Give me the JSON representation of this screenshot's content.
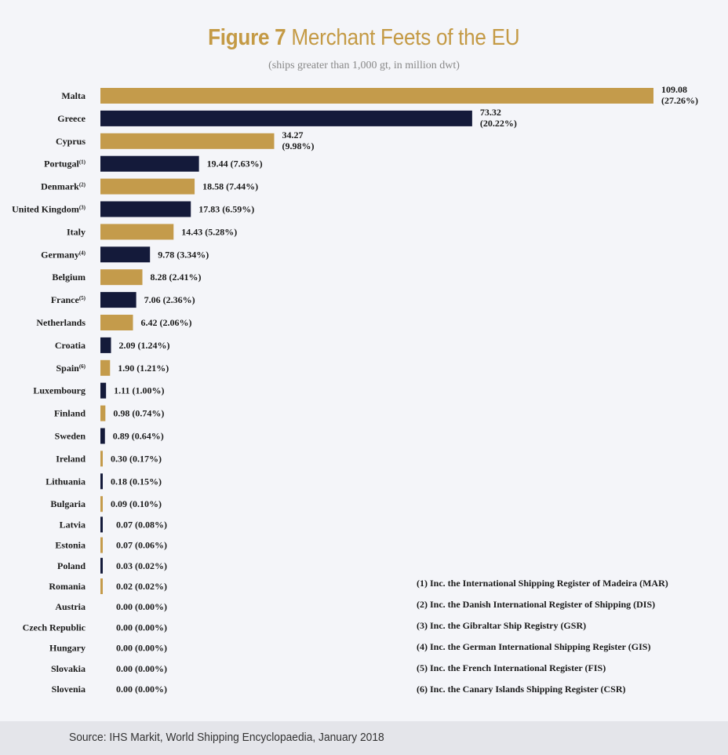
{
  "title": {
    "figure": "Figure 7",
    "text": "Merchant Feets of the EU"
  },
  "subtitle": "(ships greater than 1,000 gt, in million dwt)",
  "colors": {
    "gold": "#c49b4b",
    "navy": "#141a3a",
    "title": "#c49a45"
  },
  "chart_data": {
    "type": "bar",
    "orientation": "horizontal",
    "categories": [
      "Malta",
      "Greece",
      "Cyprus",
      "Portugal",
      "Denmark",
      "United Kingdom",
      "Italy",
      "Germany",
      "Belgium",
      "France",
      "Netherlands",
      "Croatia",
      "Spain",
      "Luxembourg",
      "Finland",
      "Sweden",
      "Ireland",
      "Lithuania",
      "Bulgaria",
      "Latvia",
      "Estonia",
      "Poland",
      "Romania",
      "Austria",
      "Czech Republic",
      "Hungary",
      "Slovakia",
      "Slovenia"
    ],
    "footnote_marks": [
      "",
      "",
      "",
      "(1)",
      "(2)",
      "(3)",
      "",
      "(4)",
      "",
      "(5)",
      "",
      "",
      "(6)",
      "",
      "",
      "",
      "",
      "",
      "",
      "",
      "",
      "",
      "",
      "",
      "",
      "",
      "",
      ""
    ],
    "values": [
      109.08,
      73.32,
      34.27,
      19.44,
      18.58,
      17.83,
      14.43,
      9.78,
      8.28,
      7.06,
      6.42,
      2.09,
      1.9,
      1.11,
      0.98,
      0.89,
      0.3,
      0.18,
      0.09,
      0.07,
      0.07,
      0.03,
      0.02,
      0.0,
      0.0,
      0.0,
      0.0,
      0.0
    ],
    "value_labels": [
      "109.08",
      "73.32",
      "34.27",
      "19.44",
      "18.58",
      "17.83",
      "14.43",
      "9.78",
      "8.28",
      "7.06",
      "6.42",
      "2.09",
      "1.90",
      "1.11",
      "0.98",
      "0.89",
      "0.30",
      "0.18",
      "0.09",
      "0.07",
      "0.07",
      "0.03",
      "0.02",
      "0.00",
      "0.00",
      "0.00",
      "0.00",
      "0.00"
    ],
    "shares": [
      "(27.26%)",
      "(20.22%)",
      "(9.98%)",
      "(7.63%)",
      "(7.44%)",
      "(6.59%)",
      "(5.28%)",
      "(3.34%)",
      "(2.41%)",
      "(2.36%)",
      "(2.06%)",
      "(1.24%)",
      "(1.21%)",
      "(1.00%)",
      "(0.74%)",
      "(0.64%)",
      "(0.17%)",
      "(0.15%)",
      "(0.10%)",
      "(0.08%)",
      "(0.06%)",
      "(0.02%)",
      "(0.02%)",
      "(0.00%)",
      "(0.00%)",
      "(0.00%)",
      "(0.00%)",
      "(0.00%)"
    ],
    "bar_colors": [
      "gold",
      "navy",
      "gold",
      "navy",
      "gold",
      "navy",
      "gold",
      "navy",
      "gold",
      "navy",
      "gold",
      "navy",
      "gold",
      "navy",
      "gold",
      "navy",
      "gold",
      "navy",
      "gold",
      "navy",
      "gold",
      "navy",
      "gold",
      "navy",
      "gold",
      "navy",
      "gold",
      "navy"
    ],
    "xlim": [
      0,
      109.08
    ],
    "grid": false,
    "unit": "million dwt"
  },
  "notes": [
    "(1) Inc. the International Shipping Register of Madeira (MAR)",
    "(2) Inc. the Danish International Register of Shipping (DIS)",
    "(3) Inc. the Gibraltar Ship Registry (GSR)",
    "(4) Inc. the German International Shipping Register (GIS)",
    "(5) Inc. the French International Register (FIS)",
    "(6) Inc. the Canary Islands Shipping Register (CSR)"
  ],
  "source": "Source: IHS Markit, World Shipping Encyclopaedia, January 2018"
}
